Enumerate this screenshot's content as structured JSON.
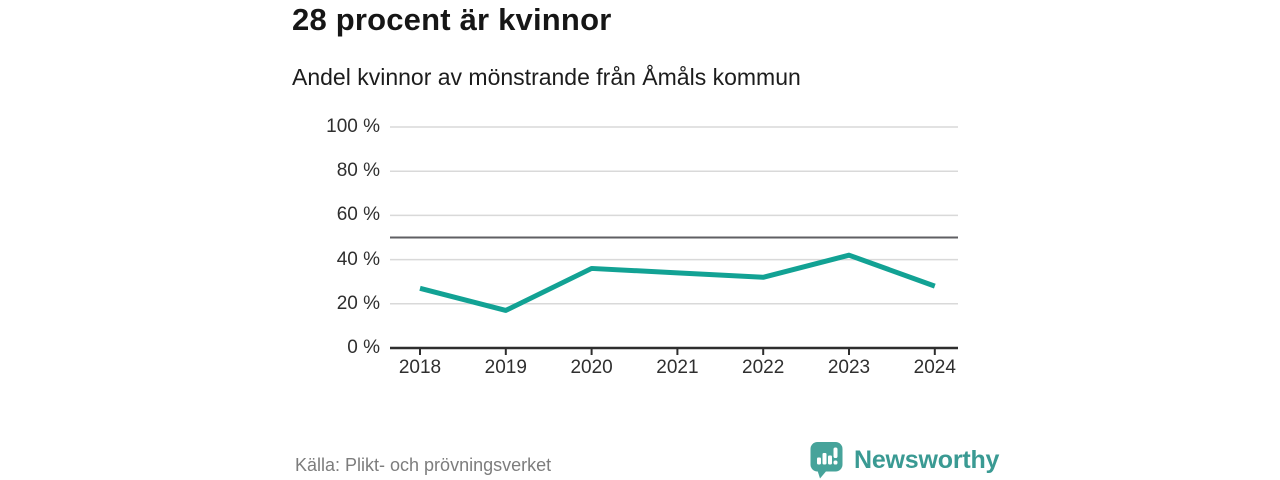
{
  "header": {
    "title": "28 procent är kvinnor",
    "subtitle": "Andel kvinnor av mönstrande från Åmåls kommun"
  },
  "chart_data": {
    "type": "line",
    "categories": [
      "2018",
      "2019",
      "2020",
      "2021",
      "2022",
      "2023",
      "2024"
    ],
    "series": [
      {
        "name": "Andel kvinnor av mönstrande",
        "values": [
          27,
          17,
          36,
          34,
          32,
          42,
          28
        ]
      }
    ],
    "unit": "%",
    "title": "28 procent är kvinnor",
    "subtitle": "Andel kvinnor av mönstrande från Åmåls kommun",
    "xlabel": "",
    "ylabel": "",
    "ylim": [
      0,
      100
    ],
    "yticks": [
      0,
      20,
      40,
      60,
      80,
      100
    ],
    "ytick_suffix": " %",
    "reference_line": 50,
    "grid": true,
    "legend": "none",
    "colors": {
      "line": "#12a294",
      "grid": "#d9d9d9",
      "axis": "#2e2e2e",
      "reference_line": "#5f5f63",
      "tick_text": "#2f2f2f"
    }
  },
  "footer": {
    "source": "Källa: Plikt- och prövningsverket",
    "brand": {
      "name": "Newsworthy",
      "icon": "newsworthy-speech-bubble-chart-icon",
      "icon_color": "#46a39a",
      "text_color": "#3a9a93",
      "icon_glyph_color": "#ffffff"
    }
  }
}
